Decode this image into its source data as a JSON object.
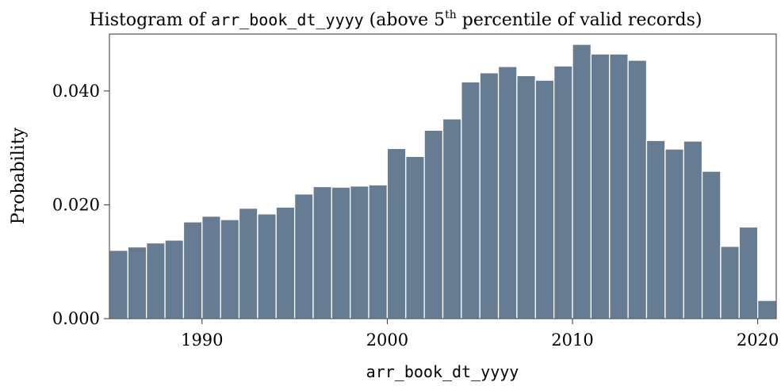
{
  "chart_data": {
    "type": "bar",
    "title_prefix": "Histogram of ",
    "title_var": "arr_book_dt_yyyy",
    "title_mid": " (above 5",
    "title_sup": "th",
    "title_suffix": " percentile of valid records)",
    "xlabel": "arr_book_dt_yyyy",
    "ylabel": "Probability",
    "xlim": [
      1985,
      2021
    ],
    "ylim": [
      0,
      0.05
    ],
    "x_ticks": [
      1990,
      2000,
      2010,
      2020
    ],
    "y_ticks": [
      0.0,
      0.02,
      0.04
    ],
    "y_tick_labels": [
      "0.000",
      "0.020",
      "0.040"
    ],
    "bin_width": 1,
    "bins": [
      {
        "x": 1985,
        "value": 0.012
      },
      {
        "x": 1986,
        "value": 0.0126
      },
      {
        "x": 1987,
        "value": 0.0133
      },
      {
        "x": 1988,
        "value": 0.0138
      },
      {
        "x": 1989,
        "value": 0.017
      },
      {
        "x": 1990,
        "value": 0.018
      },
      {
        "x": 1991,
        "value": 0.0174
      },
      {
        "x": 1992,
        "value": 0.0194
      },
      {
        "x": 1993,
        "value": 0.0184
      },
      {
        "x": 1994,
        "value": 0.0196
      },
      {
        "x": 1995,
        "value": 0.0219
      },
      {
        "x": 1996,
        "value": 0.0232
      },
      {
        "x": 1997,
        "value": 0.0231
      },
      {
        "x": 1998,
        "value": 0.0233
      },
      {
        "x": 1999,
        "value": 0.0235
      },
      {
        "x": 2000,
        "value": 0.0299
      },
      {
        "x": 2001,
        "value": 0.0285
      },
      {
        "x": 2002,
        "value": 0.0331
      },
      {
        "x": 2003,
        "value": 0.0351
      },
      {
        "x": 2004,
        "value": 0.0416
      },
      {
        "x": 2005,
        "value": 0.0432
      },
      {
        "x": 2006,
        "value": 0.0443
      },
      {
        "x": 2007,
        "value": 0.0427
      },
      {
        "x": 2008,
        "value": 0.0419
      },
      {
        "x": 2009,
        "value": 0.0444
      },
      {
        "x": 2010,
        "value": 0.0482
      },
      {
        "x": 2011,
        "value": 0.0465
      },
      {
        "x": 2012,
        "value": 0.0465
      },
      {
        "x": 2013,
        "value": 0.0454
      },
      {
        "x": 2014,
        "value": 0.0313
      },
      {
        "x": 2015,
        "value": 0.0298
      },
      {
        "x": 2016,
        "value": 0.0312
      },
      {
        "x": 2017,
        "value": 0.0259
      },
      {
        "x": 2018,
        "value": 0.0127
      },
      {
        "x": 2019,
        "value": 0.0161
      },
      {
        "x": 2020,
        "value": 0.0032
      }
    ],
    "bar_color": "#667C93",
    "bar_edge_color": "#ffffff",
    "grid": false,
    "legend": "none"
  }
}
